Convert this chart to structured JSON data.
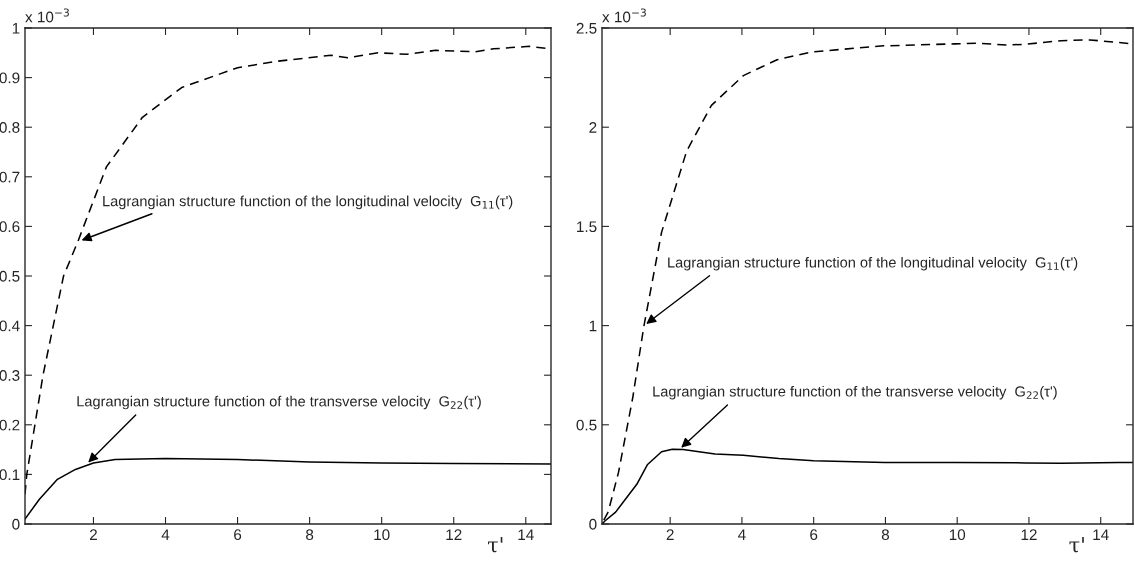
{
  "chart_data": [
    {
      "type": "line",
      "xlim": [
        0.1,
        14.7
      ],
      "ylim": [
        0,
        1
      ],
      "xticks": [
        2,
        4,
        6,
        8,
        10,
        12,
        14
      ],
      "yticks": [
        0,
        0.1,
        0.2,
        0.3,
        0.4,
        0.5,
        0.6,
        0.7,
        0.8,
        0.9,
        1
      ],
      "xlabel": "τ'",
      "grid": false,
      "legend": false,
      "series": [
        {
          "color": "#000000",
          "line_style": "dashed",
          "x": [
            0.1,
            0.15,
            0.6,
            1.17,
            1.57,
            2.36,
            3.36,
            4.45,
            6.0,
            7.1,
            8.6,
            9.06,
            9.9,
            10.7,
            11.5,
            12.6,
            13.1,
            14.1,
            14.7
          ],
          "values": [
            0.06,
            0.1,
            0.3,
            0.5,
            0.57,
            0.72,
            0.82,
            0.88,
            0.92,
            0.933,
            0.945,
            0.94,
            0.95,
            0.947,
            0.955,
            0.952,
            0.958,
            0.963,
            0.958
          ]
        },
        {
          "color": "#000000",
          "line_style": "solid",
          "x": [
            0.1,
            0.5,
            1.0,
            1.5,
            2.0,
            2.6,
            4.0,
            6.0,
            8.0,
            10.0,
            12.0,
            14.7
          ],
          "values": [
            0.01,
            0.05,
            0.09,
            0.11,
            0.123,
            0.13,
            0.132,
            0.13,
            0.125,
            0.123,
            0.122,
            0.121
          ]
        }
      ],
      "annotations": [
        "x 10$^{−3}$",
        {
          "text": "Lagrangian structure function of the longitudinal velocity  G$_{11}$(τ')",
          "x": 1.6,
          "y": 0.57
        },
        {
          "text": "Lagrangian structure function of the transverse velocity  G$_{22}$(τ')",
          "x": 1.8,
          "y": 0.12
        }
      ]
    },
    {
      "type": "line",
      "xlim": [
        0.1,
        14.9
      ],
      "ylim": [
        0,
        2.5
      ],
      "xticks": [
        2,
        4,
        6,
        8,
        10,
        12,
        14
      ],
      "yticks": [
        0,
        0.5,
        1,
        1.5,
        2,
        2.5
      ],
      "xlabel": "τ'",
      "grid": false,
      "legend": false,
      "series": [
        {
          "color": "#000000",
          "line_style": "dashed",
          "x": [
            0.15,
            0.27,
            0.56,
            0.96,
            1.27,
            1.76,
            2.46,
            3.15,
            4.04,
            4.98,
            5.97,
            7.95,
            9.93,
            10.6,
            11.4,
            11.9,
            12.9,
            13.7,
            14.5,
            14.9
          ],
          "values": [
            0.02,
            0.06,
            0.26,
            0.64,
            1.0,
            1.47,
            1.88,
            2.11,
            2.26,
            2.34,
            2.38,
            2.41,
            2.42,
            2.423,
            2.414,
            2.418,
            2.436,
            2.44,
            2.427,
            2.42
          ]
        },
        {
          "color": "#000000",
          "line_style": "solid",
          "x": [
            0.1,
            0.18,
            0.48,
            1.07,
            1.37,
            1.76,
            2.06,
            2.36,
            3.25,
            4.04,
            5.03,
            6.0,
            7.98,
            9.9,
            11.9,
            12.9,
            14.5,
            14.9
          ],
          "values": [
            0.0,
            0.015,
            0.06,
            0.2,
            0.3,
            0.364,
            0.377,
            0.375,
            0.353,
            0.346,
            0.33,
            0.319,
            0.31,
            0.31,
            0.308,
            0.306,
            0.31,
            0.31
          ]
        }
      ],
      "annotations": [
        "x 10$^{−3}$",
        {
          "text": "Lagrangian structure function of the longitudinal velocity  G$_{11}$(τ')",
          "x": 1.27,
          "y": 1.0
        },
        {
          "text": "Lagrangian structure function of the transverse velocity  G$_{22}$(τ')",
          "x": 2.25,
          "y": 0.375
        }
      ]
    }
  ]
}
